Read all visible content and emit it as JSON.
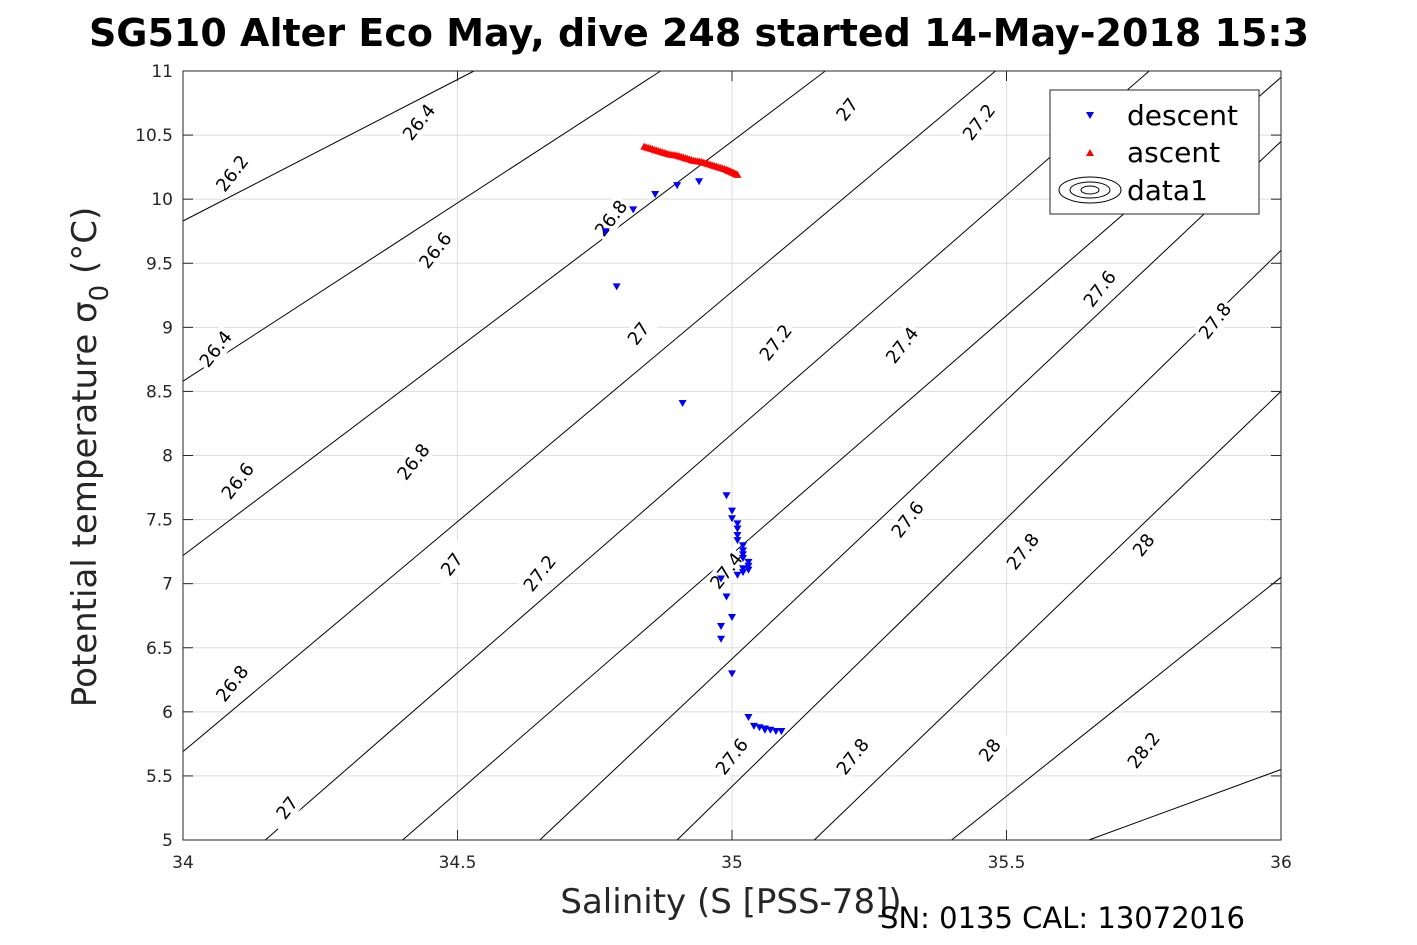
{
  "chart_data": {
    "type": "scatter",
    "title": "SG510 Alter Eco May, dive 248 started 14-May-2018 15:3",
    "xlabel": "Salinity (S [PSS-78])",
    "ylabel": "Potential temperature σ_0 (°C)",
    "ylabel_main": "Potential temperature σ",
    "ylabel_sub": "0",
    "ylabel_tail": " (°C)",
    "xlim": [
      34,
      36
    ],
    "ylim": [
      5,
      11
    ],
    "xticks": [
      34,
      34.5,
      35,
      35.5,
      36
    ],
    "xtick_labels": [
      "34",
      "34.5",
      "35",
      "35.5",
      "36"
    ],
    "yticks": [
      5,
      5.5,
      6,
      6.5,
      7,
      7.5,
      8,
      8.5,
      9,
      9.5,
      10,
      10.5,
      11
    ],
    "ytick_labels": [
      "5",
      "5.5",
      "6",
      "6.5",
      "7",
      "7.5",
      "8",
      "8.5",
      "9",
      "9.5",
      "10",
      "10.5",
      "11"
    ],
    "grid": true,
    "legend_position": "top-right",
    "contours": {
      "levels": [
        26.2,
        26.4,
        26.6,
        26.8,
        27,
        27.2,
        27.4,
        27.6,
        27.8,
        28,
        28.2
      ],
      "lines": [
        {
          "level": 26.2,
          "points": [
            [
              34,
              9.83
            ],
            [
              34.53,
              11
            ]
          ]
        },
        {
          "level": 26.4,
          "points": [
            [
              34,
              8.58
            ],
            [
              34.87,
              11
            ]
          ]
        },
        {
          "level": 26.6,
          "points": [
            [
              34,
              7.22
            ],
            [
              35.17,
              11
            ]
          ]
        },
        {
          "level": 26.8,
          "points": [
            [
              34,
              5.69
            ],
            [
              35.48,
              11
            ]
          ]
        },
        {
          "level": 27,
          "points": [
            [
              34.15,
              5
            ],
            [
              35.76,
              11
            ]
          ]
        },
        {
          "level": 27.2,
          "points": [
            [
              34.4,
              5
            ],
            [
              36,
              10.95
            ]
          ]
        },
        {
          "level": 27.4,
          "points": [
            [
              34.65,
              5
            ],
            [
              36,
              10.45
            ]
          ]
        },
        {
          "level": 27.6,
          "points": [
            [
              34.9,
              5
            ],
            [
              36,
              9.6
            ]
          ]
        },
        {
          "level": 27.8,
          "points": [
            [
              35.15,
              5
            ],
            [
              36,
              8.5
            ]
          ]
        },
        {
          "level": 28,
          "points": [
            [
              35.4,
              5
            ],
            [
              36,
              7.05
            ]
          ]
        },
        {
          "level": 28.2,
          "points": [
            [
              35.65,
              5
            ],
            [
              36,
              5.55
            ]
          ]
        }
      ],
      "labels": [
        {
          "text": "26.2",
          "x": 34.09,
          "y": 10.2
        },
        {
          "text": "26.4",
          "x": 34.43,
          "y": 10.6
        },
        {
          "text": "26.4",
          "x": 34.06,
          "y": 8.83
        },
        {
          "text": "26.6",
          "x": 34.46,
          "y": 9.6
        },
        {
          "text": "26.6",
          "x": 34.1,
          "y": 7.8
        },
        {
          "text": "26.8",
          "x": 34.42,
          "y": 7.95
        },
        {
          "text": "26.8",
          "x": 34.78,
          "y": 9.85
        },
        {
          "text": "26.8",
          "x": 34.09,
          "y": 6.22
        },
        {
          "text": "27",
          "x": 34.19,
          "y": 5.25
        },
        {
          "text": "27",
          "x": 34.49,
          "y": 7.15
        },
        {
          "text": "27",
          "x": 34.83,
          "y": 8.95
        },
        {
          "text": "27",
          "x": 35.21,
          "y": 10.7
        },
        {
          "text": "27.2",
          "x": 34.65,
          "y": 7.08
        },
        {
          "text": "27.2",
          "x": 35.08,
          "y": 8.88
        },
        {
          "text": "27.2",
          "x": 35.45,
          "y": 10.6
        },
        {
          "text": "27.4",
          "x": 34.99,
          "y": 7.1
        },
        {
          "text": "27.4",
          "x": 35.31,
          "y": 8.86
        },
        {
          "text": "27.6",
          "x": 35,
          "y": 5.65
        },
        {
          "text": "27.6",
          "x": 35.32,
          "y": 7.5
        },
        {
          "text": "27.6",
          "x": 35.67,
          "y": 9.3
        },
        {
          "text": "27.8",
          "x": 35.22,
          "y": 5.65
        },
        {
          "text": "27.8",
          "x": 35.53,
          "y": 7.25
        },
        {
          "text": "27.8",
          "x": 35.88,
          "y": 9.05
        },
        {
          "text": "28",
          "x": 35.47,
          "y": 5.7
        },
        {
          "text": "28",
          "x": 35.75,
          "y": 7.3
        },
        {
          "text": "28.2",
          "x": 35.75,
          "y": 5.7
        }
      ]
    },
    "series": [
      {
        "name": "descent",
        "color": "#0000ff",
        "marker": "triangle-down",
        "points": [
          [
            34.77,
            9.75
          ],
          [
            34.79,
            9.32
          ],
          [
            34.82,
            9.92
          ],
          [
            34.86,
            10.04
          ],
          [
            34.9,
            10.11
          ],
          [
            34.94,
            10.14
          ],
          [
            34.91,
            8.41
          ],
          [
            34.99,
            7.69
          ],
          [
            35,
            7.57
          ],
          [
            35,
            7.51
          ],
          [
            35.01,
            7.47
          ],
          [
            35.01,
            7.43
          ],
          [
            35.01,
            7.38
          ],
          [
            35.01,
            7.34
          ],
          [
            35.02,
            7.3
          ],
          [
            35.02,
            7.26
          ],
          [
            35.02,
            7.23
          ],
          [
            35.02,
            7.2
          ],
          [
            35.03,
            7.17
          ],
          [
            35.03,
            7.14
          ],
          [
            35.03,
            7.11
          ],
          [
            35.02,
            7.09
          ],
          [
            35.01,
            7.07
          ],
          [
            35.02,
            7.12
          ],
          [
            34.98,
            7.04
          ],
          [
            34.99,
            6.9
          ],
          [
            35,
            6.74
          ],
          [
            34.98,
            6.67
          ],
          [
            34.98,
            6.57
          ],
          [
            35,
            6.3
          ],
          [
            35.03,
            5.96
          ],
          [
            35.04,
            5.89
          ],
          [
            35.05,
            5.88
          ],
          [
            35.06,
            5.87
          ],
          [
            35.06,
            5.86
          ],
          [
            35.07,
            5.86
          ],
          [
            35.08,
            5.85
          ],
          [
            35.09,
            5.85
          ]
        ]
      },
      {
        "name": "ascent",
        "color": "#ff0000",
        "marker": "triangle-up",
        "points": [
          [
            34.84,
            10.41
          ],
          [
            34.855,
            10.39
          ],
          [
            34.87,
            10.37
          ],
          [
            34.885,
            10.35
          ],
          [
            34.9,
            10.34
          ],
          [
            34.915,
            10.32
          ],
          [
            34.93,
            10.3
          ],
          [
            34.945,
            10.29
          ],
          [
            34.96,
            10.27
          ],
          [
            34.975,
            10.25
          ],
          [
            34.99,
            10.23
          ],
          [
            35,
            10.21
          ],
          [
            35.01,
            10.19
          ]
        ]
      },
      {
        "name": "data1",
        "color": "#000000",
        "marker": "contour"
      }
    ],
    "footnote": "SN: 0135  CAL: 13072016"
  }
}
